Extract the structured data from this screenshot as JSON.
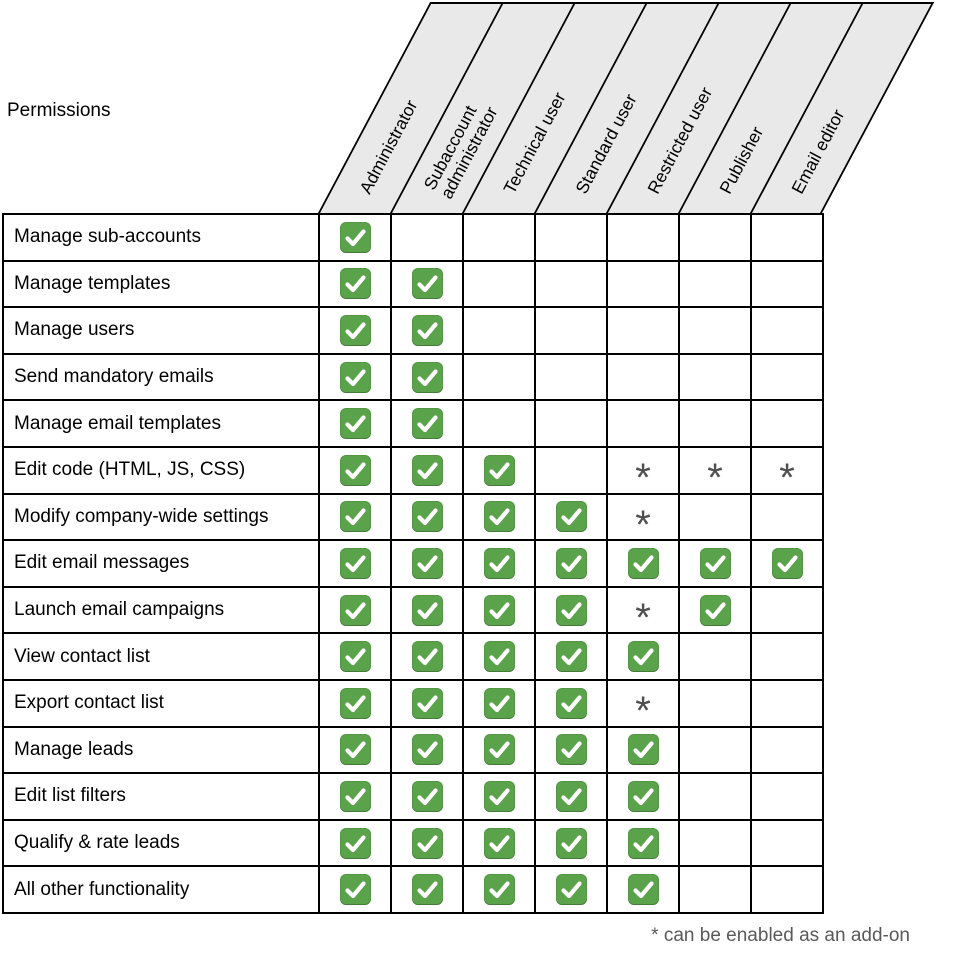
{
  "chart_data": {
    "type": "table",
    "title": "Permissions",
    "columns": [
      [
        "Administrator"
      ],
      [
        "Subaccount",
        "administrator"
      ],
      [
        "Technical user"
      ],
      [
        "Standard user"
      ],
      [
        "Restricted user"
      ],
      [
        "Publisher"
      ],
      [
        "Email editor"
      ]
    ],
    "rows": [
      {
        "label": "Manage sub-accounts",
        "cells": [
          "check",
          "",
          "",
          "",
          "",
          "",
          ""
        ]
      },
      {
        "label": "Manage templates",
        "cells": [
          "check",
          "check",
          "",
          "",
          "",
          "",
          ""
        ]
      },
      {
        "label": "Manage users",
        "cells": [
          "check",
          "check",
          "",
          "",
          "",
          "",
          ""
        ]
      },
      {
        "label": "Send mandatory emails",
        "cells": [
          "check",
          "check",
          "",
          "",
          "",
          "",
          ""
        ]
      },
      {
        "label": "Manage email templates",
        "cells": [
          "check",
          "check",
          "",
          "",
          "",
          "",
          ""
        ]
      },
      {
        "label": "Edit code (HTML, JS, CSS)",
        "cells": [
          "check",
          "check",
          "check",
          "",
          "star",
          "star",
          "star"
        ]
      },
      {
        "label": "Modify company-wide settings",
        "cells": [
          "check",
          "check",
          "check",
          "check",
          "star",
          "",
          ""
        ]
      },
      {
        "label": "Edit email messages",
        "cells": [
          "check",
          "check",
          "check",
          "check",
          "check",
          "check",
          "check"
        ]
      },
      {
        "label": "Launch email campaigns",
        "cells": [
          "check",
          "check",
          "check",
          "check",
          "star",
          "check",
          ""
        ]
      },
      {
        "label": "View contact list",
        "cells": [
          "check",
          "check",
          "check",
          "check",
          "check",
          "",
          ""
        ]
      },
      {
        "label": "Export contact list",
        "cells": [
          "check",
          "check",
          "check",
          "check",
          "star",
          "",
          ""
        ]
      },
      {
        "label": "Manage leads",
        "cells": [
          "check",
          "check",
          "check",
          "check",
          "check",
          "",
          ""
        ]
      },
      {
        "label": "Edit list filters",
        "cells": [
          "check",
          "check",
          "check",
          "check",
          "check",
          "",
          ""
        ]
      },
      {
        "label": "Qualify & rate leads",
        "cells": [
          "check",
          "check",
          "check",
          "check",
          "check",
          "",
          ""
        ]
      },
      {
        "label": "All other functionality",
        "cells": [
          "check",
          "check",
          "check",
          "check",
          "check",
          "",
          ""
        ]
      }
    ],
    "star_symbol": "*",
    "footnote": "* can be enabled as an add-on",
    "colors": {
      "check_green": "#5ba34b",
      "header_bg": "#e9e9e9",
      "asterisk_gray": "#4f4f4f",
      "border": "#000000",
      "footnote_gray": "#5a5a5a"
    },
    "legend_cell_states": [
      "check",
      "star",
      "empty"
    ]
  }
}
